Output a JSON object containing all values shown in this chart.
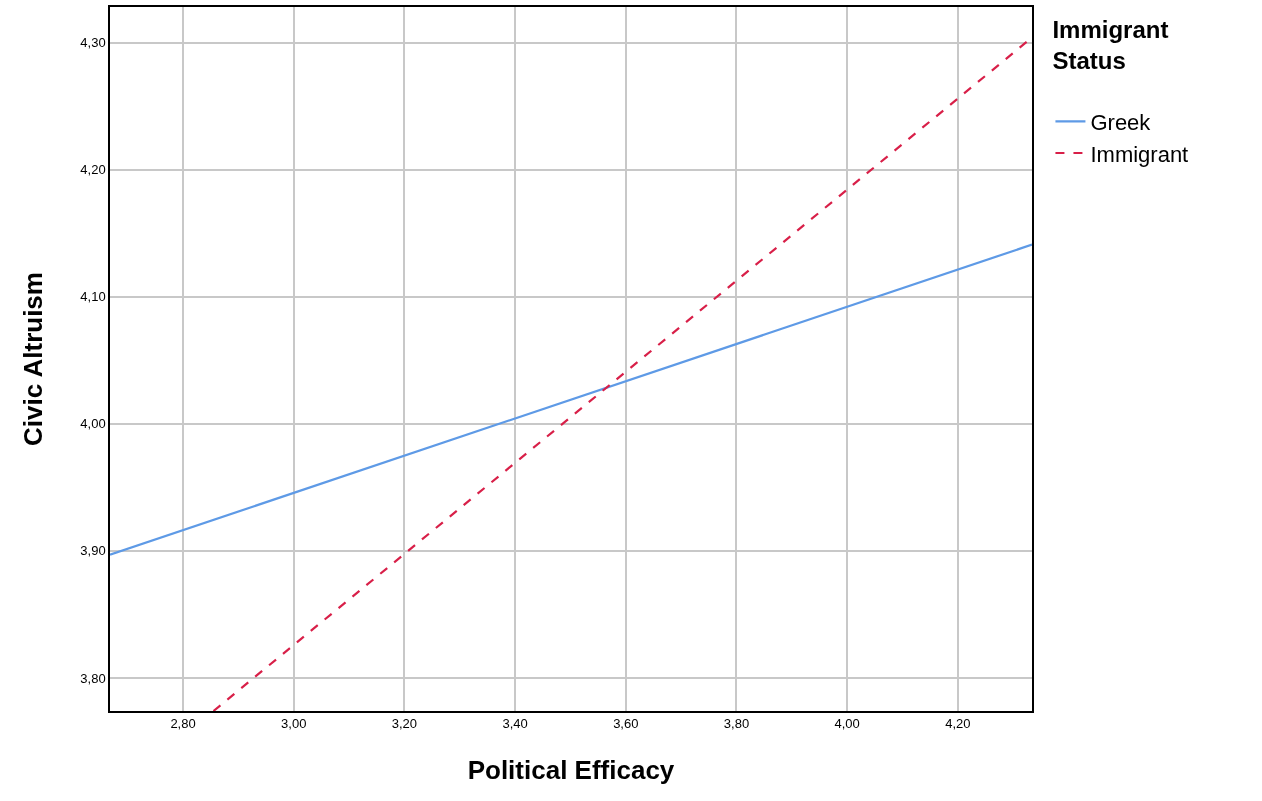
{
  "chart_data": {
    "type": "line",
    "xlabel": "Political Efficacy",
    "ylabel": "Civic Altruism",
    "legend_title": "Immigrant\nStatus",
    "legend": "right",
    "grid": true,
    "marker": "none",
    "xlim": [
      2.668,
      4.334
    ],
    "ylim": [
      3.774,
      4.328
    ],
    "xticks": [
      {
        "value": 2.8,
        "label": "2,80"
      },
      {
        "value": 3.0,
        "label": "3,00"
      },
      {
        "value": 3.2,
        "label": "3,20"
      },
      {
        "value": 3.4,
        "label": "3,40"
      },
      {
        "value": 3.6,
        "label": "3,60"
      },
      {
        "value": 3.8,
        "label": "3,80"
      },
      {
        "value": 4.0,
        "label": "4,00"
      },
      {
        "value": 4.2,
        "label": "4,20"
      }
    ],
    "yticks": [
      {
        "value": 3.8,
        "label": "3,80"
      },
      {
        "value": 3.9,
        "label": "3,90"
      },
      {
        "value": 4.0,
        "label": "4,00"
      },
      {
        "value": 4.1,
        "label": "4,10"
      },
      {
        "value": 4.2,
        "label": "4,20"
      },
      {
        "value": 4.3,
        "label": "4,30"
      }
    ],
    "series": [
      {
        "name": "Greek",
        "color": "#5e9ae6",
        "line_style": "solid",
        "x": [
          2.668,
          4.334
        ],
        "values": [
          3.897,
          4.141
        ]
      },
      {
        "name": "Immigrant",
        "color": "#d81f48",
        "line_style": "dashed",
        "x": [
          2.855,
          4.334
        ],
        "values": [
          3.774,
          4.304
        ]
      }
    ]
  }
}
